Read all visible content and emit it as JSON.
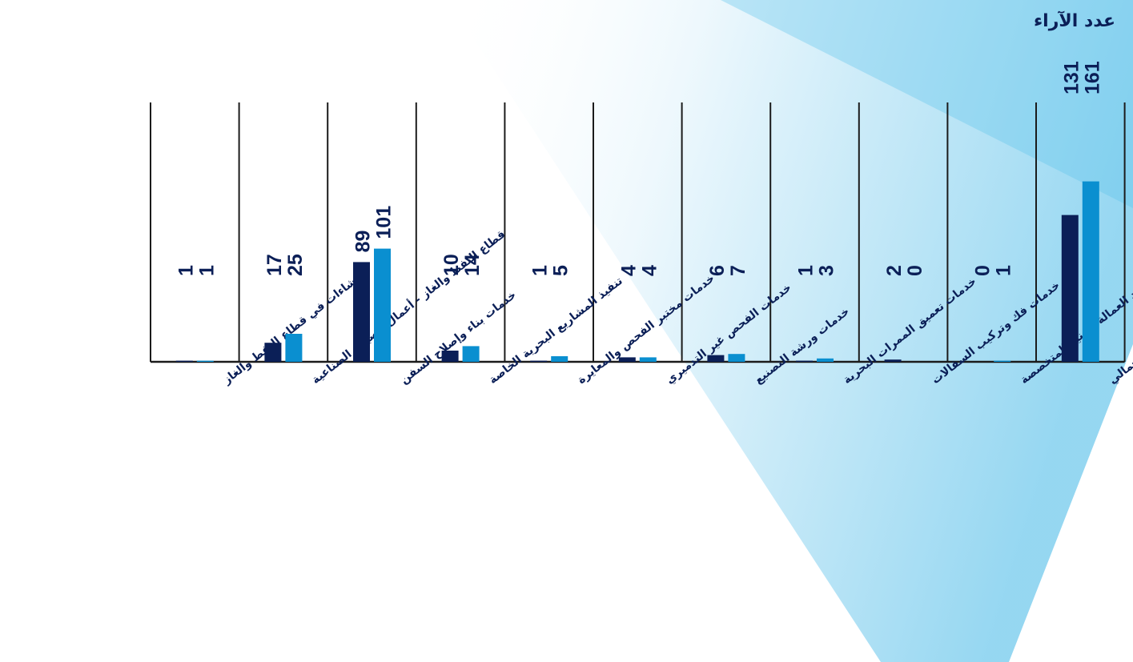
{
  "chart_data": {
    "type": "bar",
    "ylabel": "عدد الآراء",
    "categories": [
      "الإنشاءات في قطاع النفط والغاز",
      "قطاع النفط والغاز - أعمال الصيانة الصناعية",
      "خدمات بناء وإصلاح السفن",
      "تنفيذ المشاريع البحرية الخاصة",
      "خدمات مختبر الفحص والمعايرة",
      "خدمات الفحص غير التدميري",
      "خدمات ورشة التصنيع",
      "خدمات تعميق الممرات البحرية",
      "خدمات فك وتركيب السقالات",
      "هايسكو لتوريد العمالة الفنية المتخصصة",
      "الإجمالي"
    ],
    "series": [
      {
        "values": [
          1,
          17,
          89,
          10,
          1,
          4,
          6,
          1,
          2,
          0,
          131
        ],
        "color": "#0b1f57"
      },
      {
        "values": [
          1,
          25,
          101,
          14,
          5,
          4,
          7,
          3,
          0,
          1,
          161
        ],
        "color": "#0a8fd0"
      }
    ],
    "ylim": [
      0,
      180
    ],
    "grid": false
  }
}
